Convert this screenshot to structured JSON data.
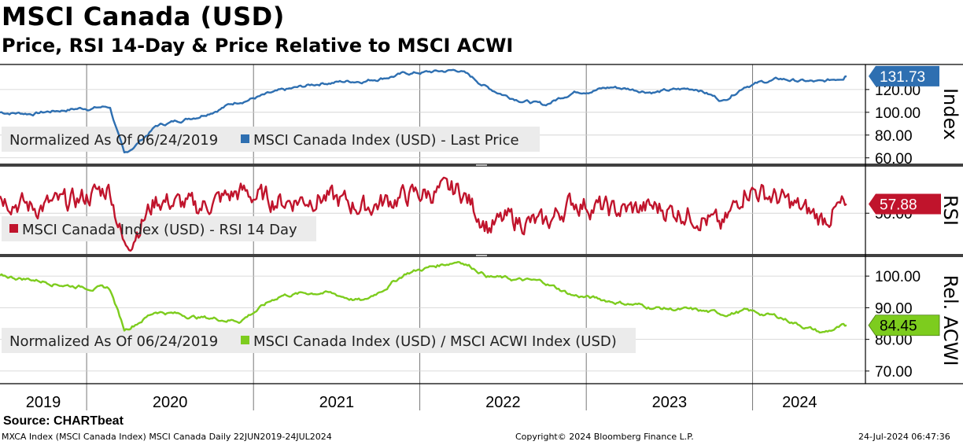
{
  "header": {
    "title": "MSCI Canada (USD)",
    "subtitle": "Price, RSI 14-Day & Price Relative to MSCI ACWI"
  },
  "footer": {
    "source": "Source: CHARTbeat",
    "left": "MXCA Index (MSCI Canada Index) MSCI Canada  Daily 22JUN2019-24JUL2024",
    "center": "Copyright© 2024 Bloomberg Finance L.P.",
    "right": "24-Jul-2024 06:47:36"
  },
  "colors": {
    "price": "#2e6fb1",
    "rsi": "#c0142c",
    "relative": "#7dcc1e",
    "legend_bg": "#ebebeb",
    "separator": "#404040"
  },
  "chart_data": [
    {
      "type": "line",
      "panel": "price",
      "axis_title": "Index",
      "legend": [
        "Normalized As Of 06/24/2019",
        "MSCI Canada Index (USD) - Last Price"
      ],
      "y_ticks": [
        "60.00",
        "80.00",
        "100.00",
        "120.00"
      ],
      "ylim": [
        55,
        142
      ],
      "last_value": "131.73",
      "x": [
        "2019-06-24",
        "2019-09-01",
        "2019-12-01",
        "2020-02-20",
        "2020-03-23",
        "2020-06-01",
        "2020-09-01",
        "2020-12-01",
        "2021-03-01",
        "2021-06-01",
        "2021-09-01",
        "2021-12-01",
        "2022-03-29",
        "2022-06-01",
        "2022-07-14",
        "2022-09-30",
        "2022-12-01",
        "2023-03-01",
        "2023-06-01",
        "2023-09-01",
        "2023-10-27",
        "2023-12-15",
        "2024-03-01",
        "2024-06-01",
        "2024-07-24"
      ],
      "values": [
        100,
        99,
        103,
        105,
        62,
        88,
        97,
        110,
        118,
        126,
        128,
        134,
        137,
        121,
        114,
        106,
        118,
        122,
        118,
        121,
        110,
        124,
        129,
        126,
        131.73
      ]
    },
    {
      "type": "line",
      "panel": "rsi",
      "axis_title": "RSI",
      "legend": [
        "MSCI Canada Index (USD) - RSI 14 Day"
      ],
      "y_ticks": [
        "50.00"
      ],
      "ylim": [
        15,
        90
      ],
      "last_value": "57.88",
      "x": [
        "2019-06-24",
        "2019-09-01",
        "2019-12-01",
        "2020-02-20",
        "2020-03-23",
        "2020-06-01",
        "2020-09-01",
        "2020-12-01",
        "2021-03-01",
        "2021-06-01",
        "2021-09-01",
        "2021-12-01",
        "2022-03-29",
        "2022-06-01",
        "2022-07-14",
        "2022-09-30",
        "2022-12-01",
        "2023-03-01",
        "2023-06-01",
        "2023-09-01",
        "2023-10-27",
        "2023-12-15",
        "2024-03-01",
        "2024-06-01",
        "2024-07-24"
      ],
      "values": [
        65,
        55,
        60,
        72,
        20,
        62,
        55,
        68,
        60,
        64,
        55,
        65,
        70,
        38,
        45,
        40,
        60,
        52,
        55,
        48,
        38,
        72,
        62,
        45,
        57.88
      ]
    },
    {
      "type": "line",
      "panel": "relative",
      "axis_title": "Rel. ACWI",
      "legend": [
        "Normalized As Of 06/24/2019",
        "MSCI Canada Index (USD) / MSCI ACWI Index (USD)"
      ],
      "y_ticks": [
        "70.00",
        "80.00",
        "90.00",
        "100.00"
      ],
      "ylim": [
        66,
        106
      ],
      "last_value": "84.45",
      "x": [
        "2019-06-24",
        "2019-09-01",
        "2019-12-01",
        "2020-02-20",
        "2020-03-23",
        "2020-06-01",
        "2020-09-01",
        "2020-12-01",
        "2021-03-01",
        "2021-06-01",
        "2021-09-01",
        "2021-12-01",
        "2022-03-29",
        "2022-06-01",
        "2022-07-14",
        "2022-09-30",
        "2022-12-01",
        "2023-03-01",
        "2023-06-01",
        "2023-09-01",
        "2023-10-27",
        "2023-12-15",
        "2024-03-01",
        "2024-06-01",
        "2024-07-24"
      ],
      "values": [
        100,
        99,
        97,
        96,
        83,
        89,
        87,
        86,
        94,
        95,
        92,
        101,
        105,
        100,
        99,
        98,
        94,
        92,
        90,
        89,
        88,
        89,
        87,
        82,
        84.45
      ]
    }
  ],
  "x_axis": {
    "years": [
      "2019",
      "2020",
      "2021",
      "2022",
      "2023",
      "2024"
    ]
  }
}
